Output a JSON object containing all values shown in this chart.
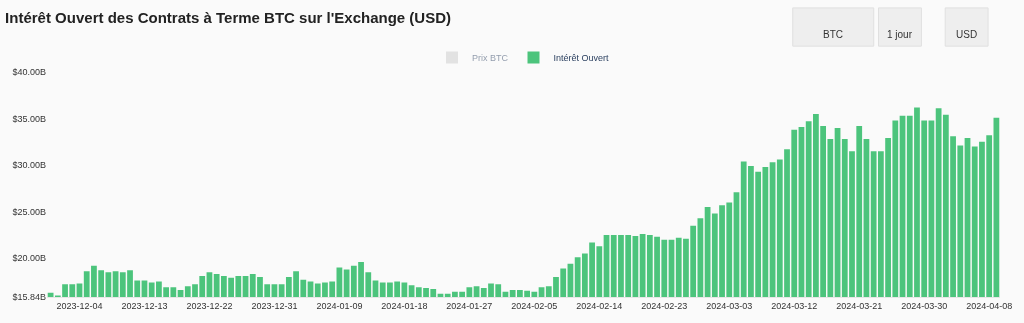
{
  "chart_data": {
    "type": "bar",
    "title": "Intérêt Ouvert des Contrats à Terme BTC sur l'Exchange (USD)",
    "annotations": [
      "BTC",
      "1 jour",
      "USD"
    ],
    "x": [
      "2023-11-30",
      "2023-12-01",
      "2023-12-02",
      "2023-12-03",
      "2023-12-04",
      "2023-12-05",
      "2023-12-06",
      "2023-12-07",
      "2023-12-08",
      "2023-12-09",
      "2023-12-10",
      "2023-12-11",
      "2023-12-12",
      "2023-12-13",
      "2023-12-14",
      "2023-12-15",
      "2023-12-16",
      "2023-12-17",
      "2023-12-18",
      "2023-12-19",
      "2023-12-20",
      "2023-12-21",
      "2023-12-22",
      "2023-12-23",
      "2023-12-24",
      "2023-12-25",
      "2023-12-26",
      "2023-12-27",
      "2023-12-28",
      "2023-12-29",
      "2023-12-30",
      "2023-12-31",
      "2024-01-01",
      "2024-01-02",
      "2024-01-03",
      "2024-01-04",
      "2024-01-05",
      "2024-01-06",
      "2024-01-07",
      "2024-01-08",
      "2024-01-09",
      "2024-01-10",
      "2024-01-11",
      "2024-01-12",
      "2024-01-13",
      "2024-01-14",
      "2024-01-15",
      "2024-01-16",
      "2024-01-17",
      "2024-01-18",
      "2024-01-19",
      "2024-01-20",
      "2024-01-21",
      "2024-01-22",
      "2024-01-23",
      "2024-01-24",
      "2024-01-25",
      "2024-01-26",
      "2024-01-27",
      "2024-01-28",
      "2024-01-29",
      "2024-01-30",
      "2024-01-31",
      "2024-02-01",
      "2024-02-02",
      "2024-02-03",
      "2024-02-04",
      "2024-02-05",
      "2024-02-06",
      "2024-02-07",
      "2024-02-08",
      "2024-02-09",
      "2024-02-10",
      "2024-02-11",
      "2024-02-12",
      "2024-02-13",
      "2024-02-14",
      "2024-02-15",
      "2024-02-16",
      "2024-02-17",
      "2024-02-18",
      "2024-02-19",
      "2024-02-20",
      "2024-02-21",
      "2024-02-22",
      "2024-02-23",
      "2024-02-24",
      "2024-02-25",
      "2024-02-26",
      "2024-02-27",
      "2024-02-28",
      "2024-02-29",
      "2024-03-01",
      "2024-03-02",
      "2024-03-03",
      "2024-03-04",
      "2024-03-05",
      "2024-03-06",
      "2024-03-07",
      "2024-03-08",
      "2024-03-09",
      "2024-03-10",
      "2024-03-11",
      "2024-03-12",
      "2024-03-13",
      "2024-03-14",
      "2024-03-15",
      "2024-03-16",
      "2024-03-17",
      "2024-03-18",
      "2024-03-19",
      "2024-03-20",
      "2024-03-21",
      "2024-03-22",
      "2024-03-23",
      "2024-03-24",
      "2024-03-25",
      "2024-03-26",
      "2024-03-27",
      "2024-03-28",
      "2024-03-29",
      "2024-03-30",
      "2024-03-31",
      "2024-04-01",
      "2024-04-02",
      "2024-04-03",
      "2024-04-04",
      "2024-04-05",
      "2024-04-06",
      "2024-04-07",
      "2024-04-08",
      "2024-04-09"
    ],
    "series": [
      {
        "name": "Prix BTC",
        "color": "#cccccc",
        "values": [
          null,
          null,
          null,
          null,
          null,
          null,
          null,
          null,
          null,
          null,
          null,
          null,
          null,
          null,
          null,
          null,
          null,
          null,
          null,
          null,
          null,
          null,
          null,
          null,
          null,
          null,
          null,
          null,
          null,
          null,
          null,
          null,
          null,
          null,
          null,
          null,
          null,
          null,
          null,
          null,
          null,
          null,
          null,
          null,
          null,
          null,
          null,
          null,
          null,
          null,
          null,
          null,
          null,
          null,
          null,
          null,
          null,
          null,
          null,
          null,
          null,
          null,
          null,
          null,
          null,
          null,
          null,
          null,
          null,
          null,
          null,
          null,
          null,
          null,
          null,
          null,
          null,
          null,
          null,
          null,
          null,
          null,
          null,
          null,
          null,
          null,
          null,
          null,
          null,
          null,
          null,
          null,
          null,
          null,
          null,
          null,
          null,
          null,
          null,
          null,
          null,
          null,
          null,
          null,
          null,
          null,
          null,
          null,
          null,
          null,
          null,
          null,
          null,
          null,
          null,
          null,
          null,
          null,
          null,
          null,
          null,
          null,
          null,
          null,
          null,
          null,
          null,
          null,
          null,
          null,
          null,
          null
        ]
      },
      {
        "name": "Intérêt Ouvert",
        "color": "#4cc47c",
        "values": [
          16.3,
          16.0,
          17.2,
          17.2,
          17.3,
          18.6,
          19.2,
          18.7,
          18.5,
          18.6,
          18.5,
          18.7,
          17.6,
          17.6,
          17.4,
          17.5,
          16.9,
          16.9,
          16.6,
          17.0,
          17.2,
          18.1,
          18.5,
          18.3,
          18.1,
          17.9,
          18.1,
          18.1,
          18.3,
          18.0,
          17.2,
          17.2,
          17.2,
          18.0,
          18.6,
          17.7,
          17.5,
          17.3,
          17.4,
          17.5,
          19.0,
          18.8,
          19.2,
          19.6,
          18.5,
          17.6,
          17.4,
          17.4,
          17.5,
          17.4,
          17.1,
          16.9,
          16.8,
          16.7,
          16.2,
          16.2,
          16.4,
          16.4,
          16.9,
          17.0,
          16.8,
          17.3,
          17.2,
          16.4,
          16.6,
          16.6,
          16.5,
          16.4,
          16.9,
          17.0,
          18.0,
          18.9,
          19.4,
          20.1,
          20.5,
          21.7,
          21.3,
          22.5,
          22.5,
          22.5,
          22.5,
          22.4,
          22.6,
          22.5,
          22.3,
          22.0,
          22.0,
          22.2,
          22.1,
          23.5,
          24.3,
          25.5,
          24.8,
          25.7,
          26.0,
          27.1,
          30.4,
          29.9,
          29.3,
          29.8,
          30.3,
          30.6,
          31.7,
          33.8,
          34.1,
          34.7,
          35.5,
          34.2,
          32.8,
          34.0,
          32.8,
          31.5,
          34.2,
          32.8,
          31.5,
          31.5,
          32.9,
          34.8,
          35.3,
          35.3,
          36.2,
          34.8,
          34.8,
          36.1,
          35.4,
          33.1,
          32.1,
          32.9,
          32.0,
          32.5,
          33.2,
          35.1
        ]
      }
    ],
    "xlim": [
      "2023-11-29T12:00",
      "2024-04-09T12:00"
    ],
    "stacked": false,
    "xticks": [
      "2023-12-04",
      "2023-12-13",
      "2023-12-22",
      "2023-12-31",
      "2024-01-09",
      "2024-01-18",
      "2024-01-27",
      "2024-02-05",
      "2024-02-14",
      "2024-02-23",
      "2024-03-03",
      "2024-03-12",
      "2024-03-21",
      "2024-03-30",
      "2024-04-08"
    ],
    "ylim": [
      15.84,
      40
    ],
    "yticks": [
      {
        "value": 15.84,
        "label": "$15.84B"
      },
      {
        "value": 20,
        "label": "$20.00B"
      },
      {
        "value": 25,
        "label": "$25.00B"
      },
      {
        "value": 30,
        "label": "$30.00B"
      },
      {
        "value": 35,
        "label": "$35.00B"
      },
      {
        "value": 40,
        "label": "$40.00B"
      }
    ],
    "legend": "top"
  }
}
